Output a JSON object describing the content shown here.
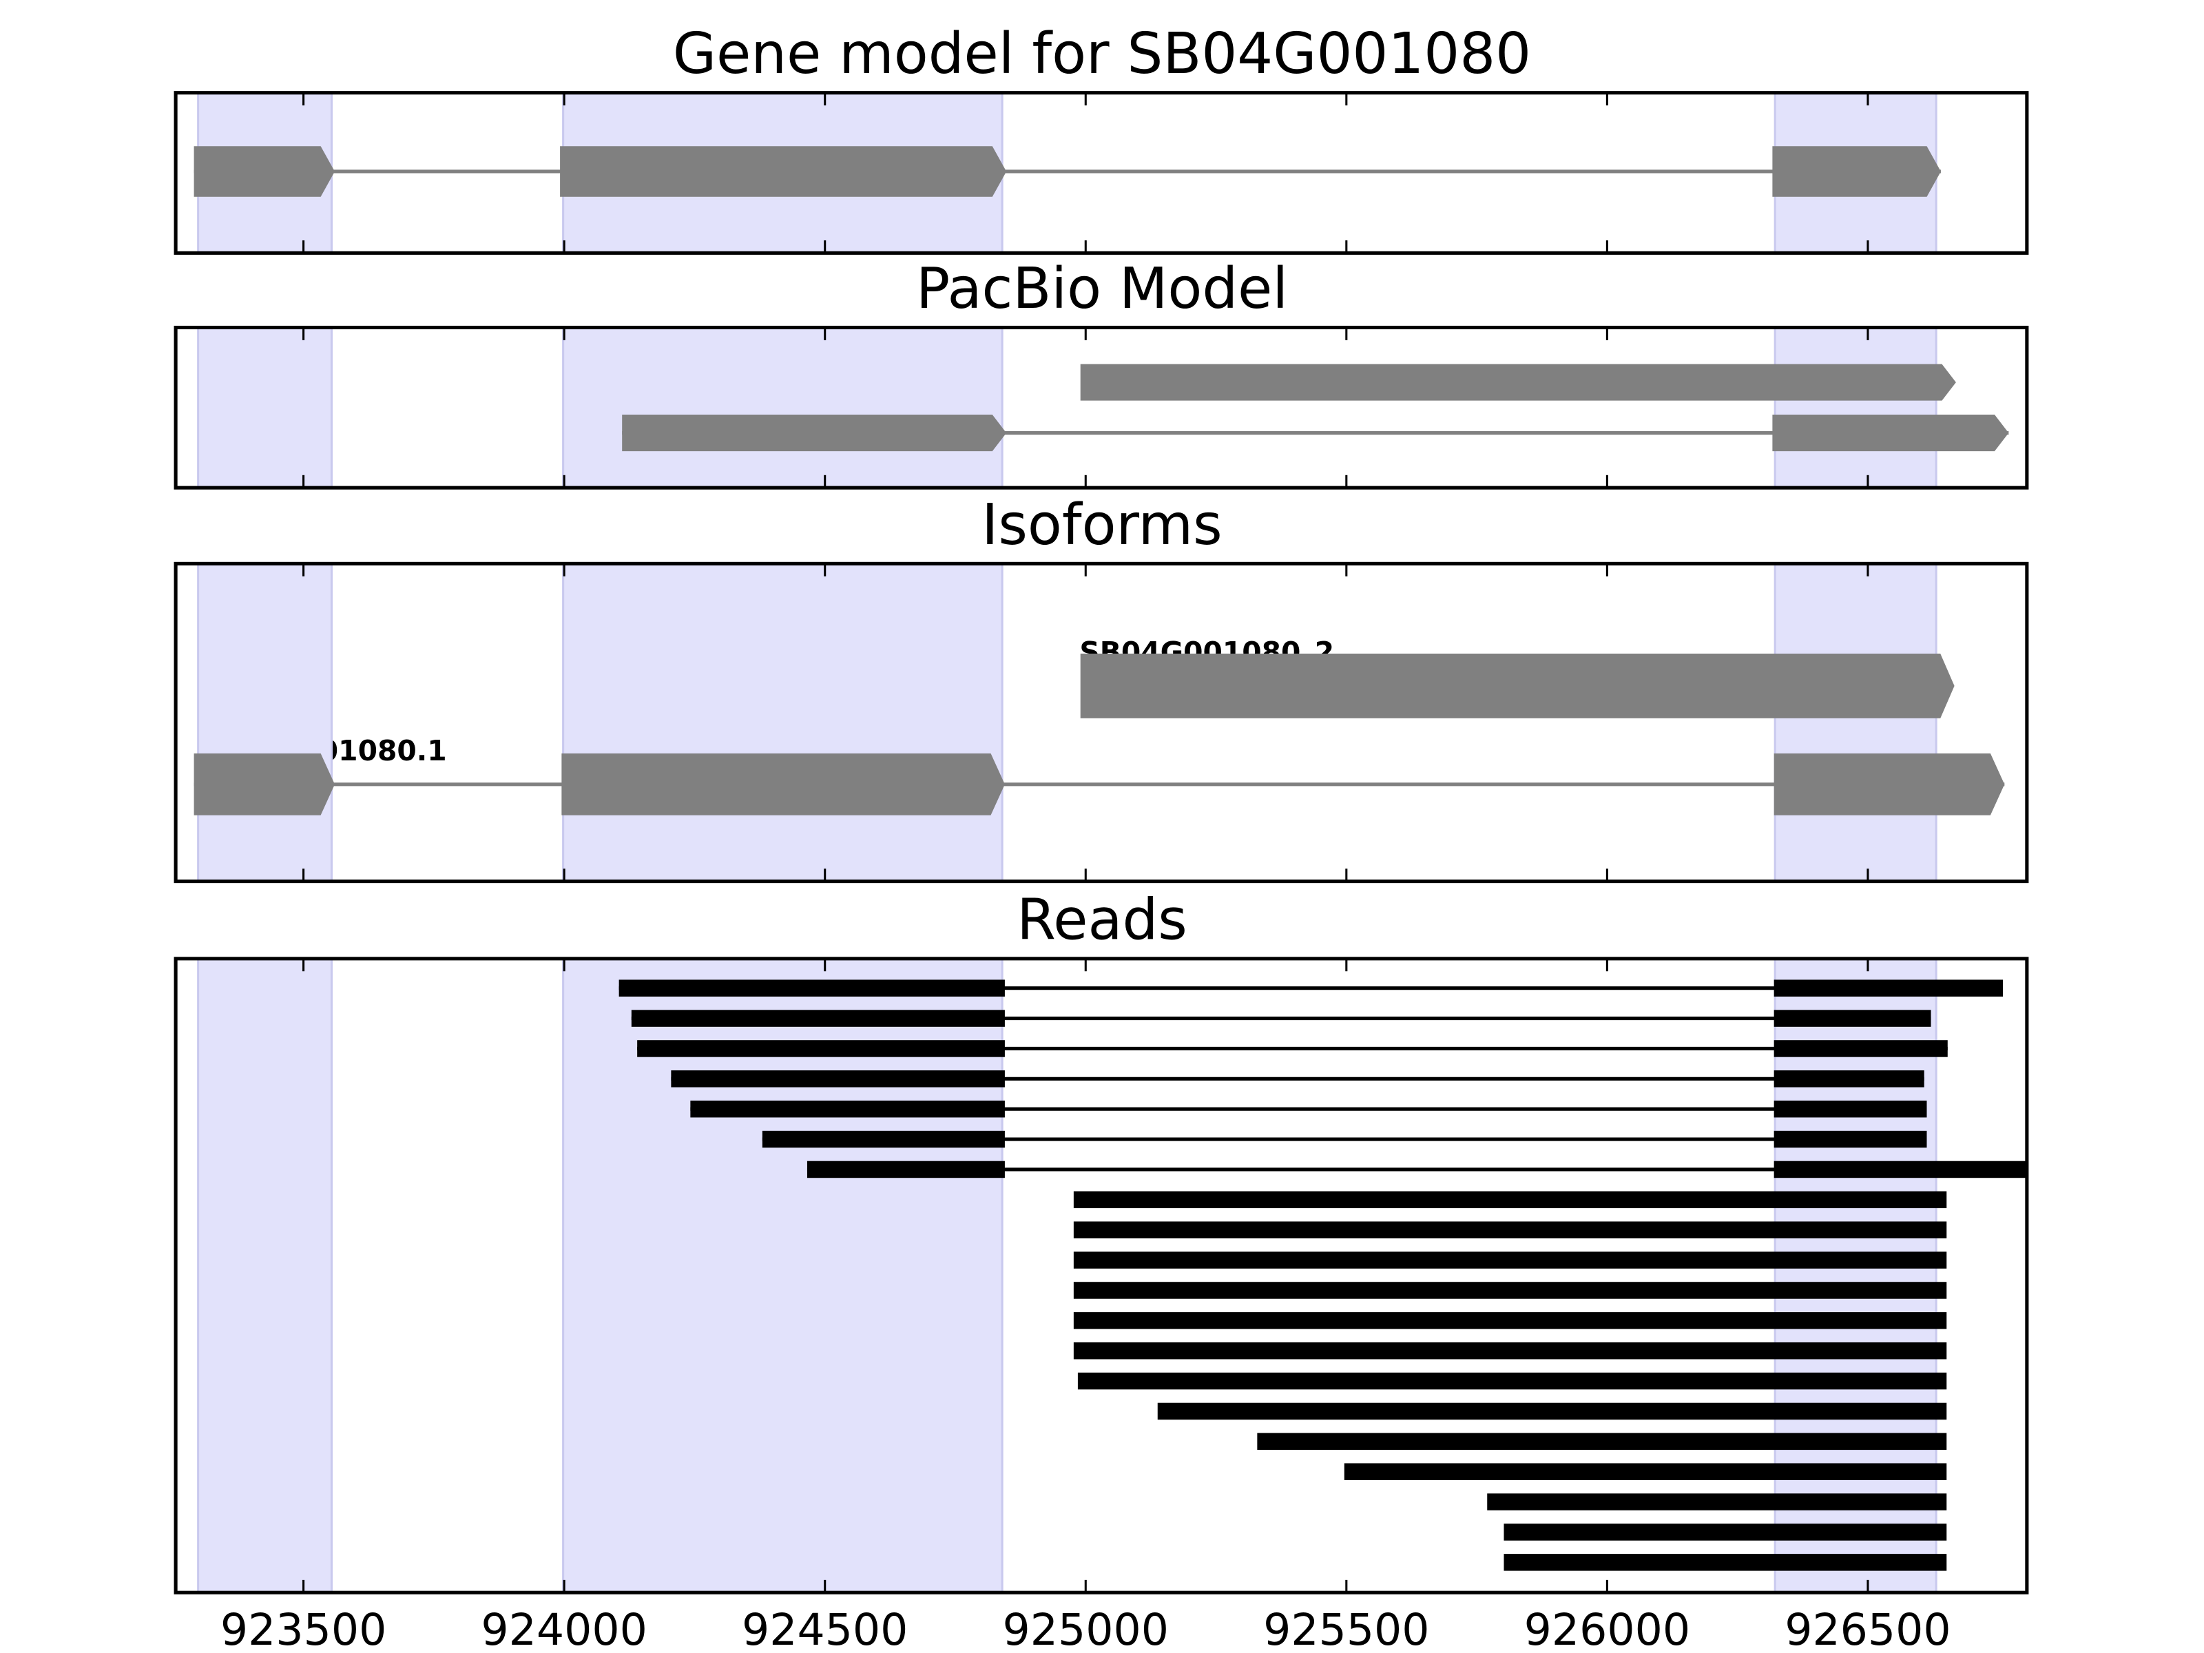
{
  "chart_data": {
    "type": "gene-track",
    "xlim": [
      923255,
      926805
    ],
    "xticks": [
      923500,
      924000,
      924500,
      925000,
      925500,
      926000,
      926500
    ],
    "xtick_labels": [
      "923500",
      "924000",
      "924500",
      "925000",
      "925500",
      "926000",
      "926500"
    ],
    "colors": {
      "shade": "#e2e2fb",
      "shade_edge": "#c9c9ee",
      "feature": "#808080",
      "read": "#000000"
    },
    "shaded_exons": [
      [
        923298,
        923554
      ],
      [
        923998,
        924840
      ],
      [
        926322,
        926631
      ]
    ],
    "panels": [
      {
        "title": "Gene model for SB04G001080",
        "tracks": [
          {
            "label": "",
            "exons": [
              [
                923290,
                923560
              ],
              [
                923992,
                924848
              ],
              [
                926317,
                926640
              ]
            ]
          }
        ]
      },
      {
        "title": "PacBio Model",
        "tracks": [
          {
            "label": "",
            "exons": [
              [
                924990,
                926669
              ]
            ]
          },
          {
            "label": "",
            "exons": [
              [
                924111,
                924848
              ],
              [
                926317,
                926770
              ]
            ]
          }
        ]
      },
      {
        "title": "Isoforms",
        "tracks": [
          {
            "label": "SB04G001080_2",
            "exons": [
              [
                924990,
                926666
              ]
            ]
          },
          {
            "label": "SB04G001080.1",
            "exons": [
              [
                923290,
                923560
              ],
              [
                923995,
                924845
              ],
              [
                926320,
                926762
              ]
            ]
          }
        ]
      },
      {
        "title": "Reads",
        "reads": [
          [
            [
              924105,
              924845
            ],
            [
              926320,
              926759
            ]
          ],
          [
            [
              924129,
              924845
            ],
            [
              926320,
              926621
            ]
          ],
          [
            [
              924140,
              924845
            ],
            [
              926320,
              926653
            ]
          ],
          [
            [
              924205,
              924845
            ],
            [
              926320,
              926608
            ]
          ],
          [
            [
              924242,
              924845
            ],
            [
              926320,
              926613
            ]
          ],
          [
            [
              924380,
              924845
            ],
            [
              926320,
              926613
            ]
          ],
          [
            [
              924466,
              924845
            ],
            [
              926320,
              926815
            ]
          ],
          [
            [
              924977,
              926651
            ]
          ],
          [
            [
              924977,
              926651
            ]
          ],
          [
            [
              924977,
              926651
            ]
          ],
          [
            [
              924977,
              926651
            ]
          ],
          [
            [
              924977,
              926651
            ]
          ],
          [
            [
              924977,
              926651
            ]
          ],
          [
            [
              924985,
              926651
            ]
          ],
          [
            [
              925138,
              926651
            ]
          ],
          [
            [
              925329,
              926651
            ]
          ],
          [
            [
              925496,
              926651
            ]
          ],
          [
            [
              925770,
              926651
            ]
          ],
          [
            [
              925802,
              926651
            ]
          ],
          [
            [
              925802,
              926651
            ]
          ]
        ]
      }
    ]
  }
}
